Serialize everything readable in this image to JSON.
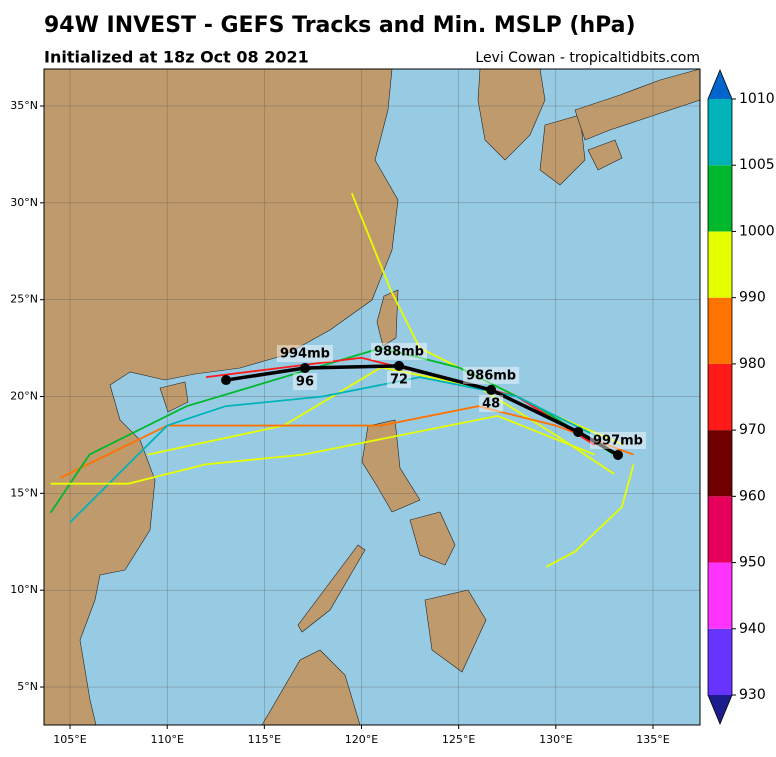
{
  "chart_data": {
    "type": "track-map",
    "title": "94W INVEST - GEFS Tracks and Min. MSLP (hPa)",
    "subtitle": "Initialized at 18z Oct 08 2021",
    "credit": "Levi Cowan - tropicaltidbits.com",
    "xlim": [
      103.66,
      137.42
    ],
    "ylim": [
      3.04,
      36.91
    ],
    "xticks": [
      {
        "value": 105,
        "label": "105°E"
      },
      {
        "value": 110,
        "label": "110°E"
      },
      {
        "value": 115,
        "label": "115°E"
      },
      {
        "value": 120,
        "label": "120°E"
      },
      {
        "value": 125,
        "label": "125°E"
      },
      {
        "value": 130,
        "label": "130°E"
      },
      {
        "value": 135,
        "label": "135°E"
      }
    ],
    "yticks": [
      {
        "value": 5,
        "label": "5°N"
      },
      {
        "value": 10,
        "label": "10°N"
      },
      {
        "value": 15,
        "label": "15°N"
      },
      {
        "value": 20,
        "label": "20°N"
      },
      {
        "value": 25,
        "label": "25°N"
      },
      {
        "value": 30,
        "label": "30°N"
      },
      {
        "value": 35,
        "label": "35°N"
      }
    ],
    "grid": true,
    "colorbar": {
      "levels": [
        930,
        940,
        950,
        960,
        970,
        980,
        990,
        1000,
        1005,
        1010
      ],
      "colors": [
        "#6633ff",
        "#ff33ff",
        "#e6005c",
        "#700000",
        "#ff1a1a",
        "#ff7300",
        "#e6ff00",
        "#00b82e",
        "#00b3b8"
      ],
      "extend_colors": [
        "#1c1c8c",
        "#0066cc"
      ]
    },
    "ensemble": [
      {
        "color": "#e6ff00",
        "lon": [
          133.5,
          130,
          127,
          123,
          121.5,
          120.5,
          119.5
        ],
        "lat": [
          17.5,
          19,
          20.5,
          22.5,
          25.5,
          28,
          30.5
        ]
      },
      {
        "color": "#e6ff00",
        "lon": [
          133,
          130,
          126,
          121,
          116,
          109
        ],
        "lat": [
          16,
          18,
          20.5,
          21.5,
          18.5,
          17
        ]
      },
      {
        "color": "#ff7300",
        "lon": [
          134,
          130,
          126,
          121,
          115,
          110,
          104.5
        ],
        "lat": [
          17,
          18.5,
          19.5,
          18.5,
          18.5,
          18.5,
          15.8
        ]
      },
      {
        "color": "#00b82e",
        "lon": [
          133,
          129,
          125,
          121,
          116,
          111,
          106,
          104
        ],
        "lat": [
          17,
          19.5,
          21.5,
          22.5,
          21,
          19.5,
          17,
          14
        ]
      },
      {
        "color": "#ff1a1a",
        "lon": [
          132,
          128,
          124,
          120,
          116,
          112
        ],
        "lat": [
          17.5,
          20,
          21,
          22,
          21.5,
          21
        ]
      },
      {
        "color": "#e6ff00",
        "lon": [
          134,
          133.4,
          131,
          129.5
        ],
        "lat": [
          16.5,
          14.3,
          12,
          11.2
        ]
      },
      {
        "color": "#00b3b8",
        "lon": [
          132,
          128,
          123,
          118,
          113,
          110,
          105
        ],
        "lat": [
          18,
          20,
          21,
          20,
          19.5,
          18.5,
          13.5
        ]
      },
      {
        "color": "#e6ff00",
        "lon": [
          132,
          127,
          122,
          117,
          112,
          108,
          104
        ],
        "lat": [
          17,
          19,
          18,
          17,
          16.5,
          15.5,
          15.5
        ]
      }
    ],
    "mean_track": {
      "color": "#000000",
      "lon": [
        133.2,
        131.15,
        126.67,
        121.93,
        117.09,
        113.03
      ],
      "lat": [
        16.98,
        18.17,
        20.34,
        21.58,
        21.47,
        20.85
      ],
      "mslp": [
        997,
        null,
        986,
        988,
        994,
        null
      ],
      "mslp_labels": [
        "997mb",
        null,
        "986mb",
        "988mb",
        "994mb",
        null
      ],
      "hours": [
        null,
        null,
        48,
        72,
        96,
        null
      ]
    }
  }
}
